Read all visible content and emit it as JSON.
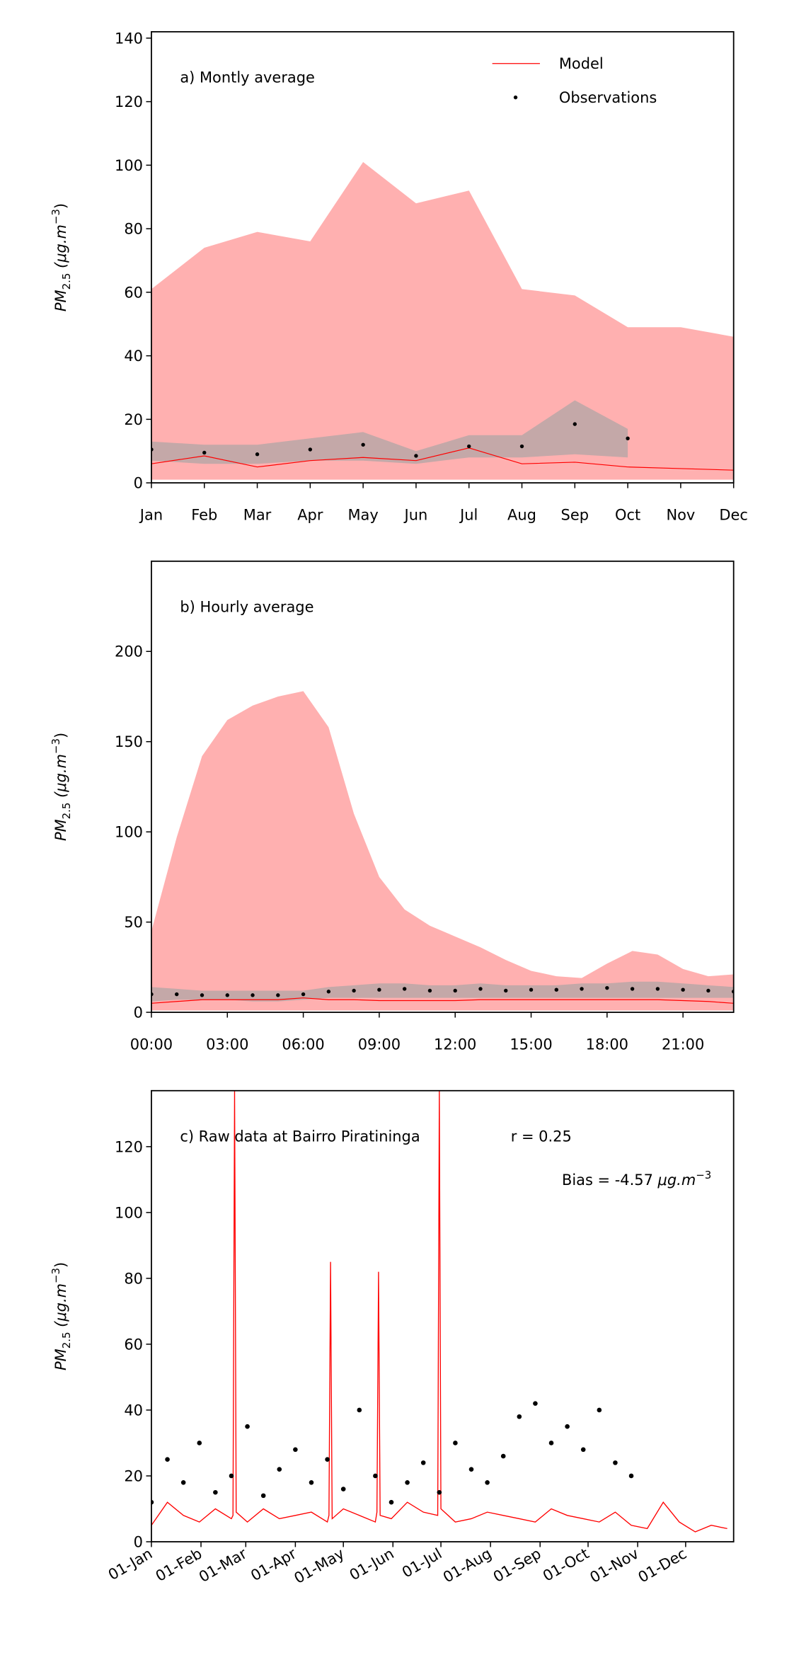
{
  "chart_data": [
    {
      "type": "line",
      "title": "a) Montly average",
      "y_label": [
        "PM",
        "2.5",
        " (μg.m",
        "−3",
        ")"
      ],
      "categories": [
        "Jan",
        "Feb",
        "Mar",
        "Apr",
        "May",
        "Jun",
        "Jul",
        "Aug",
        "Sep",
        "Oct",
        "Nov",
        "Dec"
      ],
      "ylim": [
        0,
        142
      ],
      "yticks": [
        0,
        20,
        40,
        60,
        80,
        100,
        120,
        140
      ],
      "legend": "upper right",
      "bands": [
        {
          "color": "#ffb0b0",
          "upper": [
            61,
            74,
            79,
            76,
            101,
            88,
            92,
            61,
            59,
            49,
            49,
            46
          ],
          "lower": [
            1,
            1,
            1,
            1,
            1,
            1,
            1,
            1,
            1,
            1,
            1,
            1
          ]
        },
        {
          "color": "#c4a8a8",
          "upper": [
            13,
            12,
            12,
            14,
            16,
            10,
            15,
            15,
            26,
            17,
            null,
            null
          ],
          "lower": [
            7,
            6,
            6,
            7,
            7,
            6,
            8,
            8,
            9,
            8,
            null,
            null
          ]
        }
      ],
      "series": [
        {
          "name": "Model",
          "color": "#ff0000",
          "values": [
            6,
            8.5,
            5,
            7,
            8,
            7,
            11,
            6,
            6.5,
            5,
            4.5,
            4
          ]
        },
        {
          "name": "Observations",
          "color": "#000000",
          "marker": "dot",
          "values": [
            10.5,
            9.5,
            9,
            10.5,
            12,
            8.5,
            11.5,
            11.5,
            18.5,
            14,
            null,
            null
          ]
        }
      ]
    },
    {
      "type": "line",
      "title": "b) Hourly average",
      "y_label": [
        "PM",
        "2.5",
        " (μg.m",
        "−3",
        ")"
      ],
      "x": [
        0,
        1,
        2,
        3,
        4,
        5,
        6,
        7,
        8,
        9,
        10,
        11,
        12,
        13,
        14,
        15,
        16,
        17,
        18,
        19,
        20,
        21,
        22,
        23
      ],
      "xlim": [
        0,
        23
      ],
      "xticks": [
        {
          "value": 0,
          "label": "00:00"
        },
        {
          "value": 3,
          "label": "03:00"
        },
        {
          "value": 6,
          "label": "06:00"
        },
        {
          "value": 9,
          "label": "09:00"
        },
        {
          "value": 12,
          "label": "12:00"
        },
        {
          "value": 15,
          "label": "15:00"
        },
        {
          "value": 18,
          "label": "18:00"
        },
        {
          "value": 21,
          "label": "21:00"
        }
      ],
      "ylim": [
        0,
        250
      ],
      "yticks": [
        0,
        50,
        100,
        150,
        200
      ],
      "bands": [
        {
          "color": "#ffb0b0",
          "upper": [
            45,
            97,
            142,
            162,
            170,
            175,
            178,
            158,
            110,
            75,
            57,
            48,
            42,
            36,
            29,
            23,
            20,
            19,
            27,
            34,
            32,
            24,
            20,
            21
          ],
          "lower": [
            1,
            1,
            1,
            1,
            1,
            1,
            1,
            1,
            1,
            1,
            1,
            1,
            1,
            1,
            1,
            1,
            1,
            1,
            1,
            1,
            1,
            1,
            1,
            1
          ]
        },
        {
          "color": "#c4a8a8",
          "upper": [
            14,
            13,
            12,
            12,
            12,
            12,
            12,
            14,
            15,
            16,
            16,
            15,
            15,
            16,
            15,
            15,
            15,
            16,
            16,
            17,
            17,
            16,
            15,
            14
          ],
          "lower": [
            6,
            7,
            7,
            7,
            6,
            6,
            7,
            8,
            8,
            8,
            8,
            8,
            8,
            8,
            8,
            8,
            8,
            8,
            8,
            8,
            8,
            8,
            8,
            8
          ]
        }
      ],
      "series": [
        {
          "color": "#ff0000",
          "values": [
            5,
            6,
            7,
            7,
            7,
            7,
            8,
            7,
            7,
            6.5,
            6.5,
            6.5,
            6.5,
            7,
            7,
            7,
            7,
            7,
            7,
            7,
            7,
            6.5,
            6,
            5
          ]
        },
        {
          "color": "#000000",
          "marker": "dot",
          "values": [
            10,
            10,
            9.5,
            9.5,
            9.5,
            9.5,
            10,
            11.5,
            12,
            12.5,
            13,
            12,
            12,
            13,
            12,
            12.5,
            12.5,
            13,
            13.5,
            13,
            13,
            12.5,
            12,
            11.5
          ]
        }
      ]
    },
    {
      "type": "line",
      "title": "c) Raw data at Bairro Piratininga",
      "annotation": "r = 0.25",
      "bias": [
        "Bias = -4.57 ",
        "μg.m",
        "−3"
      ],
      "y_label": [
        "PM",
        "2.5",
        " (μg.m",
        "−3",
        ")"
      ],
      "xlim": [
        0,
        364
      ],
      "xticks": [
        {
          "value": 0,
          "label": "01-Jan"
        },
        {
          "value": 31,
          "label": "01-Feb"
        },
        {
          "value": 59,
          "label": "01-Mar"
        },
        {
          "value": 90,
          "label": "01-Apr"
        },
        {
          "value": 120,
          "label": "01-May"
        },
        {
          "value": 151,
          "label": "01-Jun"
        },
        {
          "value": 181,
          "label": "01-Jul"
        },
        {
          "value": 212,
          "label": "01-Aug"
        },
        {
          "value": 243,
          "label": "01-Sep"
        },
        {
          "value": 273,
          "label": "01-Oct"
        },
        {
          "value": 304,
          "label": "01-Nov"
        },
        {
          "value": 334,
          "label": "01-Dec"
        }
      ],
      "ylim": [
        0,
        137
      ],
      "yticks": [
        0,
        20,
        40,
        60,
        80,
        100,
        120
      ],
      "series": [
        {
          "color": "#ff0000",
          "x": [
            0,
            10,
            20,
            30,
            40,
            50,
            51,
            52,
            53,
            60,
            70,
            80,
            90,
            100,
            110,
            111,
            112,
            113,
            120,
            130,
            140,
            141,
            142,
            143,
            150,
            160,
            170,
            179,
            180,
            181,
            190,
            200,
            210,
            220,
            230,
            240,
            250,
            260,
            270,
            280,
            290,
            300,
            310,
            320,
            330,
            340,
            350,
            360
          ],
          "values": [
            5,
            12,
            8,
            6,
            10,
            7,
            8,
            137,
            9,
            6,
            10,
            7,
            8,
            9,
            6,
            8,
            85,
            7,
            10,
            8,
            6,
            9,
            82,
            8,
            7,
            12,
            9,
            8,
            137,
            10,
            6,
            7,
            9,
            8,
            7,
            6,
            10,
            8,
            7,
            6,
            9,
            5,
            4,
            12,
            6,
            3,
            5,
            4
          ]
        },
        {
          "color": "#000000",
          "marker": "dot",
          "x": [
            0,
            10,
            20,
            30,
            40,
            50,
            60,
            70,
            80,
            90,
            100,
            110,
            120,
            130,
            140,
            150,
            160,
            170,
            180,
            190,
            200,
            210,
            220,
            230,
            240,
            250,
            260,
            270,
            280,
            290,
            300
          ],
          "values": [
            12,
            25,
            18,
            30,
            15,
            20,
            35,
            14,
            22,
            28,
            18,
            25,
            16,
            40,
            20,
            12,
            18,
            24,
            15,
            30,
            22,
            18,
            26,
            38,
            42,
            30,
            35,
            28,
            40,
            24,
            20
          ]
        }
      ]
    }
  ]
}
